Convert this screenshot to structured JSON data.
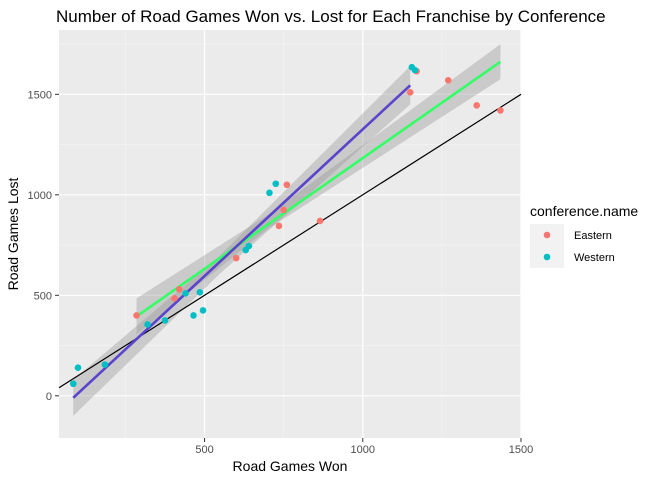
{
  "chart_data": {
    "type": "scatter",
    "title": "Number of Road Games Won vs. Lost for Each Franchise by Conference",
    "xlabel": "Road Games Won",
    "ylabel": "Road Games Lost",
    "xlim": [
      40,
      1500
    ],
    "ylim": [
      -210,
      1820
    ],
    "x_ticks": [
      500,
      1000,
      1500
    ],
    "y_ticks": [
      0,
      500,
      1000,
      1500
    ],
    "grid": true,
    "legend": {
      "title": "conference.name",
      "position": "right"
    },
    "series": [
      {
        "name": "Eastern",
        "color": "#F8766D",
        "points": [
          [
            285,
            400
          ],
          [
            405,
            485
          ],
          [
            420,
            530
          ],
          [
            600,
            685
          ],
          [
            735,
            845
          ],
          [
            750,
            925
          ],
          [
            760,
            1050
          ],
          [
            865,
            870
          ],
          [
            1150,
            1510
          ],
          [
            1170,
            1615
          ],
          [
            1270,
            1570
          ],
          [
            1360,
            1445
          ],
          [
            1435,
            1420
          ]
        ]
      },
      {
        "name": "Western",
        "color": "#00BFC4",
        "points": [
          [
            85,
            60
          ],
          [
            100,
            140
          ],
          [
            185,
            155
          ],
          [
            320,
            355
          ],
          [
            375,
            375
          ],
          [
            465,
            400
          ],
          [
            485,
            515
          ],
          [
            495,
            425
          ],
          [
            440,
            510
          ],
          [
            630,
            725
          ],
          [
            640,
            745
          ],
          [
            705,
            1010
          ],
          [
            725,
            1055
          ],
          [
            1155,
            1635
          ],
          [
            1165,
            1620
          ]
        ]
      }
    ],
    "reference_line": {
      "slope": 1,
      "intercept": 0,
      "color": "#000000"
    },
    "fits": [
      {
        "color": "#33FF66",
        "x_range": [
          285,
          1435
        ],
        "y_start": 395,
        "y_end": 1662,
        "band": [
          [
            285,
            485,
            305
          ],
          [
            700,
            900,
            830
          ],
          [
            1435,
            1750,
            1575
          ]
        ]
      },
      {
        "color": "#5B44CC",
        "x_range": [
          85,
          1150
        ],
        "y_start": -10,
        "y_end": 1545,
        "band": [
          [
            85,
            80,
            -100
          ],
          [
            550,
            700,
            610
          ],
          [
            1150,
            1640,
            1450
          ]
        ]
      }
    ]
  }
}
